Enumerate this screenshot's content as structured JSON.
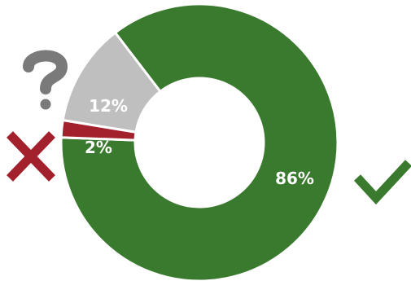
{
  "chart_data": {
    "type": "pie",
    "variant": "donut",
    "slices": [
      {
        "label": "86%",
        "value": 86,
        "color": "#3a7a2e",
        "icon": "checkmark-icon"
      },
      {
        "label": "2%",
        "value": 2,
        "color": "#a3212c",
        "icon": "cross-icon"
      },
      {
        "label": "12%",
        "value": 12,
        "color": "#bfbfbf",
        "icon": "question-mark-icon"
      }
    ],
    "title": "",
    "legend": "none"
  },
  "icons": {
    "check": {
      "name": "checkmark-icon",
      "color": "#3a7a2e"
    },
    "cross": {
      "name": "cross-icon",
      "color": "#a3212c"
    },
    "question": {
      "name": "question-mark-icon",
      "color": "#7a7a7a"
    }
  }
}
